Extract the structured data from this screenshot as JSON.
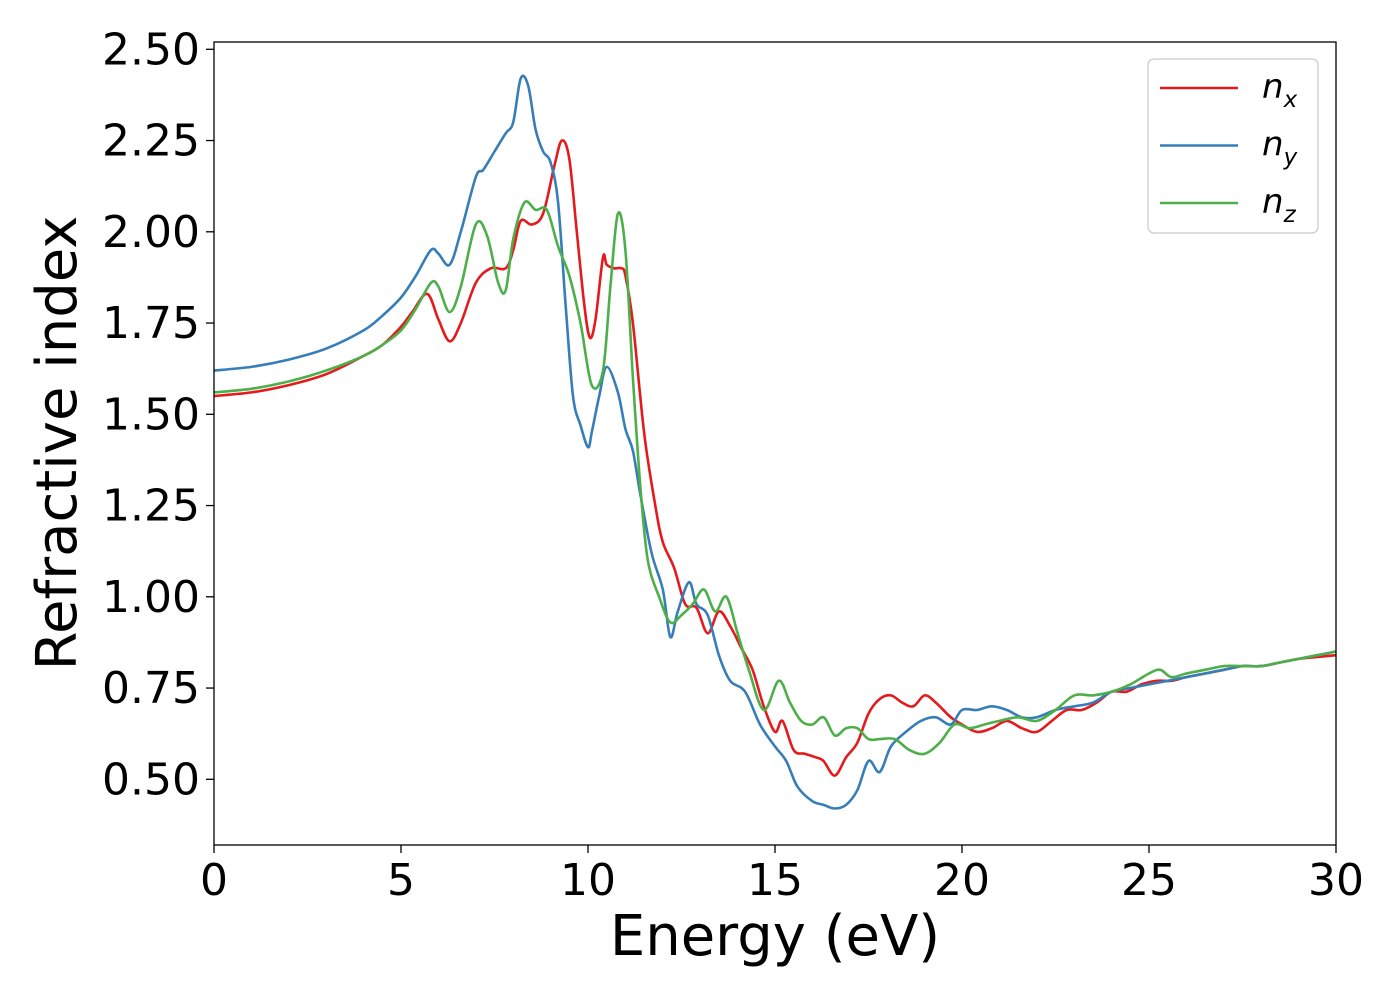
{
  "chart_data": {
    "type": "line",
    "xlabel": "Energy (eV)",
    "ylabel": "Refractive index",
    "xlim": [
      0,
      30
    ],
    "ylim": [
      0.32,
      2.52
    ],
    "xticks": [
      0,
      5,
      10,
      15,
      20,
      25,
      30
    ],
    "xtick_labels": [
      "0",
      "5",
      "10",
      "15",
      "20",
      "25",
      "30"
    ],
    "yticks": [
      0.5,
      0.75,
      1.0,
      1.25,
      1.5,
      1.75,
      2.0,
      2.25,
      2.5
    ],
    "ytick_labels": [
      "0.50",
      "0.75",
      "1.00",
      "1.25",
      "1.50",
      "1.75",
      "2.00",
      "2.25",
      "2.50"
    ],
    "grid": false,
    "legend_position": "upper-right",
    "series": [
      {
        "name": "n_x",
        "base": "n",
        "sub": "x",
        "color": "#e41a1c",
        "x": [
          0,
          1,
          2,
          3,
          4,
          4.5,
          5,
          5.3,
          5.7,
          6.0,
          6.3,
          6.6,
          7.0,
          7.4,
          7.8,
          8.0,
          8.2,
          8.5,
          8.8,
          9.1,
          9.3,
          9.5,
          9.7,
          9.9,
          10.05,
          10.2,
          10.4,
          10.5,
          10.7,
          10.9,
          11.0,
          11.2,
          11.5,
          11.8,
          12.0,
          12.3,
          12.6,
          12.9,
          13.2,
          13.5,
          13.8,
          14.1,
          14.4,
          14.7,
          15.0,
          15.2,
          15.5,
          15.8,
          16.1,
          16.3,
          16.6,
          16.9,
          17.2,
          17.5,
          17.8,
          18.1,
          18.4,
          18.7,
          19.0,
          19.3,
          19.7,
          20.0,
          20.4,
          20.8,
          21.2,
          21.6,
          22.0,
          22.4,
          22.8,
          23.2,
          23.6,
          24.0,
          24.4,
          24.8,
          25.2,
          25.6,
          26.0,
          26.5,
          27.0,
          27.5,
          28.0,
          28.5,
          29.0,
          29.5,
          30.0
        ],
        "y": [
          1.55,
          1.56,
          1.58,
          1.61,
          1.66,
          1.69,
          1.74,
          1.78,
          1.83,
          1.76,
          1.7,
          1.75,
          1.86,
          1.9,
          1.9,
          1.95,
          2.03,
          2.02,
          2.05,
          2.18,
          2.25,
          2.2,
          2.0,
          1.8,
          1.71,
          1.76,
          1.93,
          1.91,
          1.9,
          1.9,
          1.88,
          1.75,
          1.45,
          1.25,
          1.15,
          1.08,
          0.98,
          0.97,
          0.9,
          0.96,
          0.92,
          0.86,
          0.8,
          0.7,
          0.63,
          0.66,
          0.58,
          0.57,
          0.56,
          0.55,
          0.51,
          0.56,
          0.6,
          0.68,
          0.72,
          0.73,
          0.71,
          0.7,
          0.73,
          0.71,
          0.67,
          0.65,
          0.63,
          0.64,
          0.66,
          0.64,
          0.63,
          0.66,
          0.69,
          0.69,
          0.71,
          0.74,
          0.74,
          0.76,
          0.77,
          0.77,
          0.78,
          0.79,
          0.8,
          0.81,
          0.81,
          0.82,
          0.83,
          0.835,
          0.84
        ]
      },
      {
        "name": "n_y",
        "base": "n",
        "sub": "y",
        "color": "#377eb8",
        "x": [
          0,
          1,
          2,
          3,
          4,
          4.5,
          5,
          5.4,
          5.8,
          6.0,
          6.3,
          6.6,
          7.0,
          7.2,
          7.5,
          7.8,
          8.0,
          8.2,
          8.4,
          8.6,
          8.8,
          9.0,
          9.2,
          9.4,
          9.6,
          9.8,
          10.0,
          10.1,
          10.3,
          10.5,
          10.8,
          11.0,
          11.2,
          11.4,
          11.7,
          12.0,
          12.2,
          12.4,
          12.7,
          12.9,
          13.2,
          13.5,
          13.8,
          14.2,
          14.6,
          15.0,
          15.3,
          15.6,
          16.0,
          16.3,
          16.6,
          16.9,
          17.2,
          17.5,
          17.8,
          18.1,
          18.5,
          18.9,
          19.3,
          19.7,
          20.0,
          20.4,
          20.8,
          21.2,
          21.6,
          22.0,
          22.5,
          23.0,
          23.5,
          24.0,
          24.5,
          25.0,
          25.5,
          26.0,
          26.5,
          27.0,
          27.5,
          28.0,
          28.5,
          29.0,
          29.5,
          30.0
        ],
        "y": [
          1.62,
          1.63,
          1.65,
          1.68,
          1.73,
          1.77,
          1.82,
          1.88,
          1.95,
          1.94,
          1.91,
          2.0,
          2.15,
          2.17,
          2.22,
          2.27,
          2.3,
          2.42,
          2.4,
          2.28,
          2.22,
          2.19,
          2.08,
          1.8,
          1.55,
          1.47,
          1.41,
          1.45,
          1.55,
          1.63,
          1.56,
          1.46,
          1.4,
          1.28,
          1.12,
          1.02,
          0.89,
          0.96,
          1.04,
          0.98,
          0.95,
          0.84,
          0.77,
          0.74,
          0.65,
          0.59,
          0.55,
          0.48,
          0.44,
          0.43,
          0.42,
          0.43,
          0.47,
          0.55,
          0.52,
          0.59,
          0.63,
          0.66,
          0.67,
          0.65,
          0.69,
          0.69,
          0.7,
          0.69,
          0.67,
          0.67,
          0.69,
          0.7,
          0.71,
          0.74,
          0.75,
          0.76,
          0.77,
          0.78,
          0.79,
          0.8,
          0.81,
          0.81,
          0.82,
          0.83,
          0.84,
          0.85
        ]
      },
      {
        "name": "n_z",
        "base": "n",
        "sub": "z",
        "color": "#4daf4a",
        "x": [
          0,
          1,
          2,
          3,
          4,
          4.5,
          5,
          5.4,
          5.8,
          6.0,
          6.3,
          6.6,
          7.0,
          7.3,
          7.6,
          7.8,
          8.0,
          8.3,
          8.6,
          8.9,
          9.2,
          9.5,
          9.8,
          10.1,
          10.4,
          10.6,
          10.8,
          11.0,
          11.2,
          11.4,
          11.6,
          11.9,
          12.2,
          12.5,
          12.8,
          13.1,
          13.4,
          13.7,
          14.0,
          14.3,
          14.7,
          15.1,
          15.4,
          15.7,
          16.0,
          16.3,
          16.6,
          16.9,
          17.2,
          17.5,
          17.8,
          18.2,
          18.6,
          19.0,
          19.4,
          19.8,
          20.2,
          20.6,
          21.0,
          21.5,
          22.0,
          22.5,
          23.0,
          23.5,
          24.0,
          24.5,
          25.0,
          25.3,
          25.6,
          26.0,
          26.5,
          27.0,
          27.5,
          28.0,
          28.5,
          29.0,
          29.5,
          30.0
        ],
        "y": [
          1.56,
          1.57,
          1.59,
          1.62,
          1.66,
          1.69,
          1.73,
          1.79,
          1.86,
          1.85,
          1.78,
          1.85,
          2.02,
          1.99,
          1.86,
          1.84,
          1.98,
          2.08,
          2.06,
          2.06,
          1.96,
          1.88,
          1.75,
          1.58,
          1.62,
          1.85,
          2.05,
          1.95,
          1.6,
          1.3,
          1.1,
          1.0,
          0.93,
          0.95,
          0.98,
          1.02,
          0.96,
          1.0,
          0.9,
          0.8,
          0.69,
          0.77,
          0.71,
          0.66,
          0.65,
          0.67,
          0.62,
          0.64,
          0.64,
          0.61,
          0.61,
          0.61,
          0.58,
          0.57,
          0.6,
          0.65,
          0.64,
          0.65,
          0.66,
          0.67,
          0.66,
          0.69,
          0.73,
          0.73,
          0.74,
          0.76,
          0.79,
          0.8,
          0.78,
          0.79,
          0.8,
          0.81,
          0.81,
          0.81,
          0.82,
          0.83,
          0.84,
          0.85
        ]
      }
    ]
  }
}
